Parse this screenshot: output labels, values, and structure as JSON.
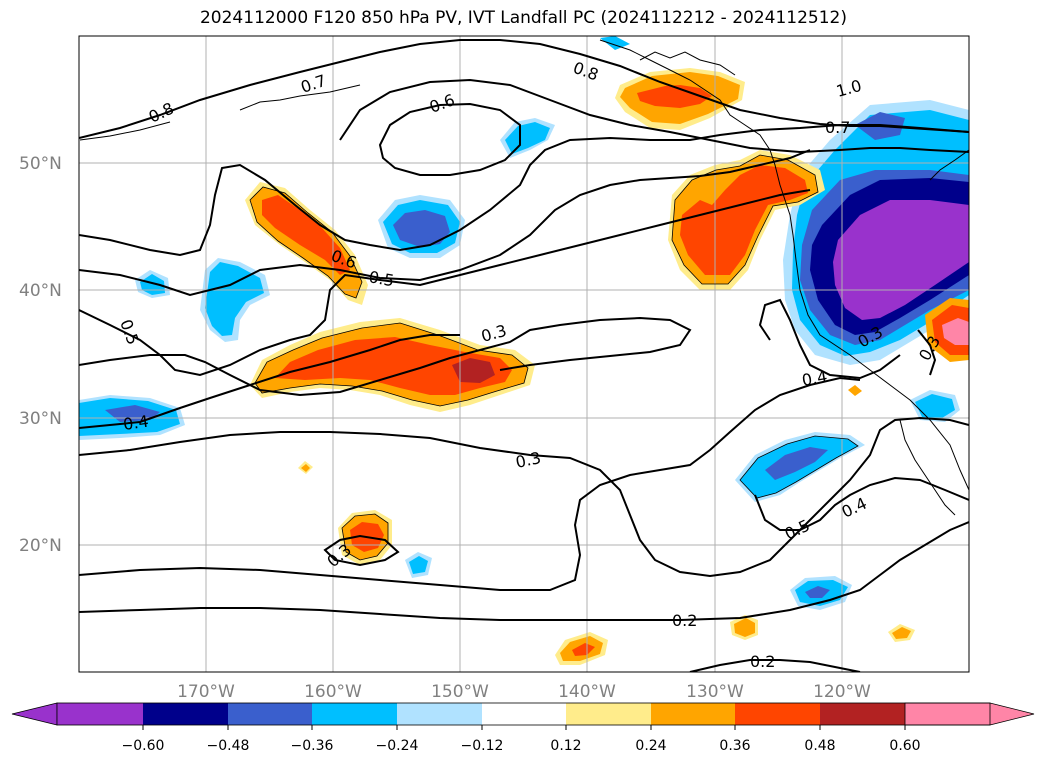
{
  "title": "2024112000 F120 850 hPa PV, IVT Landfall PC (2024112212 - 2024112512)",
  "map": {
    "lon_range": [
      -180,
      -110
    ],
    "lat_range": [
      10,
      60
    ],
    "lat_labels": [
      "20°N",
      "30°N",
      "40°N",
      "50°N"
    ],
    "lon_labels": [
      "170°W",
      "160°W",
      "150°W",
      "140°W",
      "130°W",
      "120°W"
    ],
    "contour_labels": [
      "0.8",
      "0.7",
      "0.6",
      "0.8",
      "1.0",
      "0.7",
      "0.6",
      "0.5",
      "0.5",
      "0.3",
      "0.4",
      "0.4",
      "0.3",
      "0.3",
      "0.3",
      "0.5",
      "0.4",
      "0.2",
      "0.2",
      "0.3"
    ]
  },
  "colorbar": {
    "ticks": [
      "−0.60",
      "−0.48",
      "−0.36",
      "−0.24",
      "−0.12",
      "0.12",
      "0.24",
      "0.36",
      "0.48",
      "0.60"
    ],
    "colors": [
      "#9932cc",
      "#00008b",
      "#3a5fcd",
      "#00bfff",
      "#b0e2ff",
      "#ffffff",
      "#ffec8b",
      "#ffa500",
      "#ff4500",
      "#b22222",
      "#ff85a7"
    ]
  }
}
